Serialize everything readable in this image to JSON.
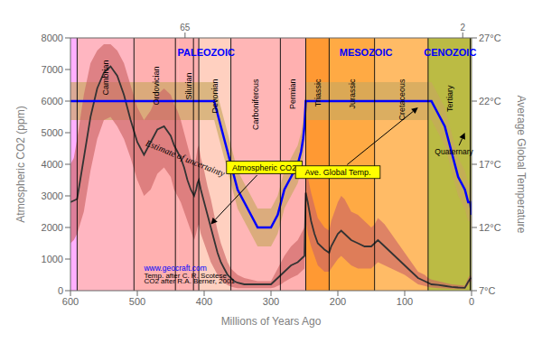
{
  "chart_data": {
    "type": "line",
    "xlabel": "Millions of Years Ago",
    "ylabel": "Atmospheric CO2 (ppm)",
    "y2label": "Average Global Temperature",
    "xlim": [
      600,
      0
    ],
    "xticks": [
      600,
      500,
      400,
      300,
      200,
      100,
      0
    ],
    "x2lim": [
      600,
      0
    ],
    "x2ticks": [
      590,
      505,
      438,
      408,
      360,
      286,
      248,
      213,
      144,
      65,
      2
    ],
    "ylim": [
      0,
      8000
    ],
    "yticks": [
      0,
      1000,
      2000,
      3000,
      4000,
      5000,
      6000,
      7000,
      8000
    ],
    "y2lim": [
      7,
      27
    ],
    "y2ticks": [
      {
        "value": 7,
        "label": "7°C"
      },
      {
        "value": 12,
        "label": "12°C"
      },
      {
        "value": 17,
        "label": "17°C"
      },
      {
        "value": 22,
        "label": "22°C"
      },
      {
        "value": 27,
        "label": "27°C"
      }
    ],
    "grid": false,
    "periods": [
      {
        "from": 600,
        "to": 590,
        "color": "#FFB0FF"
      },
      {
        "from": 590,
        "to": 505,
        "color": "#FFB6C1"
      },
      {
        "from": 505,
        "to": 438,
        "color": "#FFB0B0"
      },
      {
        "from": 438,
        "to": 408,
        "color": "#FFB0B0"
      },
      {
        "from": 408,
        "to": 360,
        "color": "#FFD0C0"
      },
      {
        "from": 360,
        "to": 286,
        "color": "#FFB6B6"
      },
      {
        "from": 286,
        "to": 248,
        "color": "#FFB0B0"
      },
      {
        "from": 248,
        "to": 213,
        "color": "#FF9933"
      },
      {
        "from": 213,
        "to": 144,
        "color": "#FFAA44"
      },
      {
        "from": 144,
        "to": 65,
        "color": "#FFBB66"
      },
      {
        "from": 65,
        "to": 0,
        "color": "#BBBB44"
      }
    ],
    "vlines": [
      590,
      505,
      443,
      416,
      408,
      360,
      286,
      248,
      213,
      145,
      65,
      2
    ],
    "series": [
      {
        "type": "band",
        "color": "#C8A860",
        "axis": "y2",
        "x": [
          600,
          590,
          580,
          570,
          560,
          550,
          540,
          530,
          520,
          510,
          500,
          490,
          480,
          470,
          460,
          450,
          445,
          440,
          435,
          430,
          425,
          420,
          415,
          410,
          405,
          400,
          395,
          390,
          385,
          380,
          375,
          370,
          365,
          360,
          355,
          350,
          340,
          330,
          320,
          310,
          300,
          295,
          290,
          285,
          280,
          270,
          260,
          255,
          252,
          250,
          248,
          246,
          244,
          242,
          240,
          235,
          230,
          220,
          213,
          210,
          200,
          190,
          180,
          170,
          160,
          150,
          145,
          140,
          130,
          120,
          110,
          100,
          90,
          80,
          70,
          65,
          60,
          50,
          40,
          30,
          20,
          10,
          5,
          2,
          0
        ],
        "lower": [
          20.5,
          20.5,
          20.5,
          20.5,
          20.5,
          20.5,
          20.5,
          20.5,
          20.5,
          20.5,
          20.5,
          20.5,
          20.5,
          20.5,
          20.5,
          20.5,
          20.5,
          20.5,
          20.5,
          20.5,
          20.5,
          20.5,
          20.5,
          20.5,
          20.5,
          20.5,
          20.5,
          20.5,
          20.5,
          19.5,
          18.5,
          17.5,
          16.5,
          15.5,
          14.5,
          13.5,
          12.5,
          11.5,
          10.5,
          10.5,
          10.5,
          11,
          11.5,
          12.5,
          13.5,
          14.5,
          15.5,
          16.5,
          17.5,
          18.5,
          20.5,
          20.5,
          20.5,
          20.5,
          20.5,
          20.5,
          20.5,
          20.5,
          20.5,
          20.5,
          20.5,
          20.5,
          20.5,
          20.5,
          20.5,
          20.5,
          20.5,
          20.5,
          20.5,
          20.5,
          20.5,
          20.5,
          20.5,
          20.5,
          20.5,
          20.5,
          20.5,
          19.5,
          18.5,
          16.5,
          14.5,
          13.5,
          12.5,
          12.5,
          11.5
        ],
        "upper": [
          23.5,
          23.5,
          23.5,
          23.5,
          23.5,
          23.5,
          23.5,
          23.5,
          23.5,
          23.5,
          23.5,
          23.5,
          23.5,
          23.5,
          23.5,
          23.5,
          23.5,
          23.5,
          23.5,
          23.5,
          23.5,
          23.5,
          23.5,
          23.5,
          23.5,
          23.5,
          23.5,
          23.5,
          23.5,
          22.5,
          21.5,
          20.5,
          19.5,
          18.5,
          17.5,
          16.5,
          15.5,
          14.5,
          13.5,
          13.5,
          13.5,
          14,
          14.5,
          15.5,
          16.5,
          17.5,
          18.5,
          19.5,
          20.5,
          21.5,
          23.5,
          23.5,
          23.5,
          23.5,
          23.5,
          23.5,
          23.5,
          23.5,
          23.5,
          23.5,
          23.5,
          23.5,
          23.5,
          23.5,
          23.5,
          23.5,
          23.5,
          23.5,
          23.5,
          23.5,
          23.5,
          23.5,
          23.5,
          23.5,
          23.5,
          23.5,
          23.5,
          22.5,
          21.5,
          19.5,
          17.5,
          16.5,
          15.5,
          15.5,
          14.5
        ]
      },
      {
        "type": "band",
        "color": "#CC6666",
        "x": [
          600,
          595,
          590,
          580,
          570,
          560,
          550,
          540,
          530,
          520,
          510,
          500,
          490,
          480,
          470,
          460,
          450,
          445,
          440,
          435,
          430,
          425,
          420,
          415,
          412,
          410,
          408,
          405,
          400,
          395,
          390,
          385,
          380,
          375,
          370,
          365,
          360,
          355,
          350,
          340,
          330,
          320,
          310,
          305,
          300,
          295,
          290,
          285,
          280,
          270,
          260,
          255,
          250,
          248,
          245,
          240,
          235,
          230,
          220,
          213,
          210,
          200,
          195,
          190,
          185,
          180,
          170,
          160,
          150,
          145,
          140,
          130,
          120,
          110,
          100,
          90,
          80,
          70,
          65,
          60,
          50,
          40,
          30,
          20,
          10,
          5,
          2,
          0
        ],
        "lower": [
          1500,
          1600,
          1800,
          2500,
          3800,
          4800,
          5400,
          5500,
          5200,
          4800,
          4200,
          3500,
          3000,
          3200,
          3700,
          3900,
          3600,
          3200,
          3000,
          2800,
          2500,
          2200,
          1900,
          1600,
          1800,
          2000,
          2100,
          1800,
          1500,
          1200,
          900,
          700,
          500,
          350,
          250,
          180,
          130,
          100,
          80,
          80,
          80,
          80,
          80,
          80,
          80,
          100,
          150,
          200,
          280,
          400,
          500,
          600,
          700,
          2200,
          1800,
          1400,
          1100,
          800,
          600,
          600,
          700,
          1000,
          1100,
          1000,
          900,
          800,
          700,
          700,
          700,
          800,
          900,
          800,
          700,
          600,
          500,
          350,
          200,
          150,
          120,
          100,
          80,
          70,
          60,
          50,
          50,
          180,
          280,
          300
        ],
        "upper": [
          4000,
          4200,
          4800,
          6200,
          7200,
          7600,
          7800,
          7800,
          7600,
          7200,
          6500,
          5800,
          5400,
          5700,
          6200,
          6400,
          6200,
          5900,
          5700,
          5400,
          5000,
          4600,
          4200,
          4000,
          4200,
          4500,
          4600,
          4200,
          3800,
          3300,
          2900,
          2400,
          1900,
          1500,
          1200,
          900,
          700,
          600,
          500,
          400,
          350,
          300,
          300,
          300,
          300,
          500,
          700,
          900,
          1100,
          1400,
          1600,
          1800,
          2000,
          3800,
          3600,
          3100,
          2700,
          2300,
          2000,
          1900,
          2200,
          2800,
          3000,
          2900,
          2700,
          2500,
          2400,
          2200,
          2000,
          2100,
          2300,
          2100,
          1800,
          1500,
          1200,
          900,
          600,
          500,
          400,
          350,
          300,
          250,
          200,
          180,
          160,
          400,
          500,
          450
        ]
      },
      {
        "type": "line",
        "color": "#333333",
        "x": [
          600,
          595,
          590,
          580,
          570,
          560,
          550,
          540,
          530,
          520,
          510,
          500,
          490,
          480,
          470,
          460,
          450,
          445,
          440,
          435,
          430,
          425,
          420,
          415,
          412,
          410,
          408,
          405,
          400,
          395,
          390,
          385,
          380,
          375,
          370,
          365,
          360,
          355,
          350,
          340,
          330,
          320,
          310,
          305,
          300,
          295,
          290,
          285,
          280,
          270,
          260,
          255,
          250,
          248,
          245,
          240,
          235,
          230,
          220,
          213,
          210,
          200,
          195,
          190,
          185,
          180,
          170,
          160,
          150,
          145,
          140,
          130,
          120,
          110,
          100,
          90,
          80,
          70,
          65,
          60,
          50,
          40,
          30,
          20,
          10,
          5,
          2,
          0
        ],
        "values": [
          2800,
          2850,
          2900,
          4200,
          5500,
          6400,
          6900,
          7100,
          6800,
          6200,
          5400,
          4700,
          4300,
          4700,
          5100,
          5200,
          4900,
          4600,
          4400,
          4200,
          3900,
          3500,
          3200,
          3000,
          3200,
          3400,
          3500,
          3200,
          2800,
          2400,
          2000,
          1600,
          1200,
          900,
          700,
          500,
          400,
          300,
          250,
          200,
          200,
          200,
          200,
          200,
          200,
          300,
          400,
          500,
          600,
          800,
          900,
          1000,
          1100,
          3100,
          2800,
          2200,
          1800,
          1500,
          1300,
          1200,
          1400,
          1800,
          1900,
          1800,
          1700,
          1600,
          1500,
          1400,
          1400,
          1500,
          1600,
          1400,
          1200,
          1000,
          800,
          600,
          400,
          300,
          250,
          200,
          180,
          150,
          120,
          100,
          90,
          280,
          380,
          390
        ]
      },
      {
        "type": "line",
        "color": "blue",
        "axis": "y2",
        "x": [
          600,
          590,
          580,
          570,
          560,
          550,
          540,
          530,
          520,
          510,
          500,
          490,
          480,
          470,
          460,
          450,
          445,
          440,
          435,
          430,
          425,
          420,
          415,
          410,
          405,
          400,
          395,
          390,
          385,
          380,
          375,
          370,
          365,
          360,
          355,
          350,
          340,
          330,
          320,
          310,
          300,
          295,
          290,
          285,
          280,
          270,
          260,
          255,
          252,
          250,
          248,
          246,
          244,
          242,
          240,
          235,
          230,
          220,
          213,
          210,
          200,
          190,
          180,
          170,
          160,
          150,
          145,
          140,
          130,
          120,
          110,
          100,
          90,
          80,
          70,
          65,
          60,
          50,
          40,
          30,
          20,
          10,
          5,
          2,
          0
        ],
        "values": [
          22,
          22,
          22,
          22,
          22,
          22,
          22,
          22,
          22,
          22,
          22,
          22,
          22,
          22,
          22,
          22,
          22,
          22,
          22,
          22,
          22,
          22,
          22,
          22,
          22,
          22,
          22,
          22,
          22,
          21,
          20,
          19,
          18,
          17,
          16,
          15,
          14,
          13,
          12,
          12,
          12,
          12.5,
          13,
          14,
          15,
          16,
          17,
          18,
          19,
          20,
          22,
          22,
          22,
          22,
          22,
          22,
          22,
          22,
          22,
          22,
          22,
          22,
          22,
          22,
          22,
          22,
          22,
          22,
          22,
          22,
          22,
          22,
          22,
          22,
          22,
          22,
          22,
          21,
          20,
          18,
          16,
          15,
          14,
          14,
          13
        ]
      }
    ],
    "annotations": [
      {
        "text": "PALEOZOIC",
        "color": "blue"
      },
      {
        "text": "MESOZOIC",
        "color": "blue"
      },
      {
        "text": "CENOZOIC",
        "color": "blue"
      },
      {
        "text": "Cambrian",
        "color": "black"
      },
      {
        "text": "Ordovician",
        "color": "black"
      },
      {
        "text": "Silurian",
        "color": "black"
      },
      {
        "text": "Devonian",
        "color": "black"
      },
      {
        "text": "Carboniferous",
        "color": "black"
      },
      {
        "text": "Permian",
        "color": "black"
      },
      {
        "text": "Triassic",
        "color": "black"
      },
      {
        "text": "Jurassic",
        "color": "black"
      },
      {
        "text": "Cretaceous",
        "color": "black"
      },
      {
        "text": "Tertiary",
        "color": "black"
      },
      {
        "text": "Quaternary",
        "color": "black"
      },
      {
        "text": "Estimate of uncertainty",
        "color": "black"
      },
      {
        "text": "Atmospheric CO2",
        "color": "black"
      },
      {
        "text": "Ave. Global Temp.",
        "color": "black"
      },
      {
        "text": "www.geocraft.com",
        "color": "blue"
      },
      {
        "text": "Temp. after C. R. Scotese",
        "color": "black"
      },
      {
        "text": "CO2 after R.A. Berner, 2001",
        "color": "black"
      }
    ]
  }
}
